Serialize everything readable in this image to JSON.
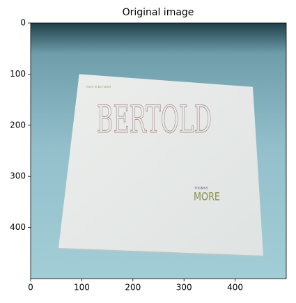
{
  "chart_data": {
    "type": "image",
    "title": "Original image",
    "xlim": [
      0,
      500
    ],
    "ylim": [
      500,
      0
    ],
    "xticks": [
      0,
      100,
      200,
      300,
      400
    ],
    "yticks": [
      0,
      100,
      200,
      300,
      400
    ],
    "image_text": [
      "more to be noted",
      "BERTOLD",
      "THOMAS",
      "MORE"
    ]
  }
}
